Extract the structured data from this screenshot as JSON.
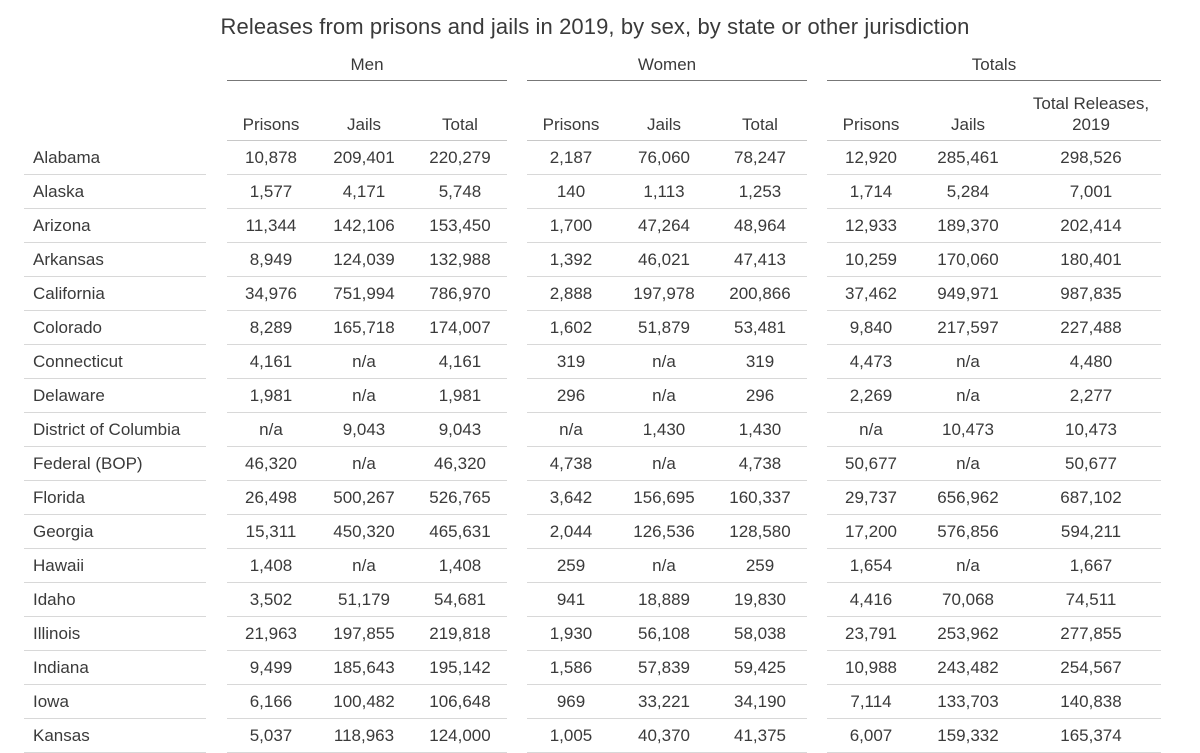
{
  "title": "Releases from prisons and jails in 2019, by sex, by state or other jurisdiction",
  "groups": {
    "men": "Men",
    "women": "Women",
    "totals": "Totals"
  },
  "columns": {
    "prisons": "Prisons",
    "jails": "Jails",
    "total": "Total",
    "total_releases": "Total Releases, 2019"
  },
  "rows": [
    {
      "state": "Alabama",
      "m_prisons": "10,878",
      "m_jails": "209,401",
      "m_total": "220,279",
      "w_prisons": "2,187",
      "w_jails": "76,060",
      "w_total": "78,247",
      "t_prisons": "12,920",
      "t_jails": "285,461",
      "t_total": "298,526"
    },
    {
      "state": "Alaska",
      "m_prisons": "1,577",
      "m_jails": "4,171",
      "m_total": "5,748",
      "w_prisons": "140",
      "w_jails": "1,113",
      "w_total": "1,253",
      "t_prisons": "1,714",
      "t_jails": "5,284",
      "t_total": "7,001"
    },
    {
      "state": "Arizona",
      "m_prisons": "11,344",
      "m_jails": "142,106",
      "m_total": "153,450",
      "w_prisons": "1,700",
      "w_jails": "47,264",
      "w_total": "48,964",
      "t_prisons": "12,933",
      "t_jails": "189,370",
      "t_total": "202,414"
    },
    {
      "state": "Arkansas",
      "m_prisons": "8,949",
      "m_jails": "124,039",
      "m_total": "132,988",
      "w_prisons": "1,392",
      "w_jails": "46,021",
      "w_total": "47,413",
      "t_prisons": "10,259",
      "t_jails": "170,060",
      "t_total": "180,401"
    },
    {
      "state": "California",
      "m_prisons": "34,976",
      "m_jails": "751,994",
      "m_total": "786,970",
      "w_prisons": "2,888",
      "w_jails": "197,978",
      "w_total": "200,866",
      "t_prisons": "37,462",
      "t_jails": "949,971",
      "t_total": "987,835"
    },
    {
      "state": "Colorado",
      "m_prisons": "8,289",
      "m_jails": "165,718",
      "m_total": "174,007",
      "w_prisons": "1,602",
      "w_jails": "51,879",
      "w_total": "53,481",
      "t_prisons": "9,840",
      "t_jails": "217,597",
      "t_total": "227,488"
    },
    {
      "state": "Connecticut",
      "m_prisons": "4,161",
      "m_jails": "n/a",
      "m_total": "4,161",
      "w_prisons": "319",
      "w_jails": "n/a",
      "w_total": "319",
      "t_prisons": "4,473",
      "t_jails": "n/a",
      "t_total": "4,480"
    },
    {
      "state": "Delaware",
      "m_prisons": "1,981",
      "m_jails": "n/a",
      "m_total": "1,981",
      "w_prisons": "296",
      "w_jails": "n/a",
      "w_total": "296",
      "t_prisons": "2,269",
      "t_jails": "n/a",
      "t_total": "2,277"
    },
    {
      "state": "District of Columbia",
      "m_prisons": "n/a",
      "m_jails": "9,043",
      "m_total": "9,043",
      "w_prisons": "n/a",
      "w_jails": "1,430",
      "w_total": "1,430",
      "t_prisons": "n/a",
      "t_jails": "10,473",
      "t_total": "10,473"
    },
    {
      "state": "Federal (BOP)",
      "m_prisons": "46,320",
      "m_jails": "n/a",
      "m_total": "46,320",
      "w_prisons": "4,738",
      "w_jails": "n/a",
      "w_total": "4,738",
      "t_prisons": "50,677",
      "t_jails": "n/a",
      "t_total": "50,677"
    },
    {
      "state": "Florida",
      "m_prisons": "26,498",
      "m_jails": "500,267",
      "m_total": "526,765",
      "w_prisons": "3,642",
      "w_jails": "156,695",
      "w_total": "160,337",
      "t_prisons": "29,737",
      "t_jails": "656,962",
      "t_total": "687,102"
    },
    {
      "state": "Georgia",
      "m_prisons": "15,311",
      "m_jails": "450,320",
      "m_total": "465,631",
      "w_prisons": "2,044",
      "w_jails": "126,536",
      "w_total": "128,580",
      "t_prisons": "17,200",
      "t_jails": "576,856",
      "t_total": "594,211"
    },
    {
      "state": "Hawaii",
      "m_prisons": "1,408",
      "m_jails": "n/a",
      "m_total": "1,408",
      "w_prisons": "259",
      "w_jails": "n/a",
      "w_total": "259",
      "t_prisons": "1,654",
      "t_jails": "n/a",
      "t_total": "1,667"
    },
    {
      "state": "Idaho",
      "m_prisons": "3,502",
      "m_jails": "51,179",
      "m_total": "54,681",
      "w_prisons": "941",
      "w_jails": "18,889",
      "w_total": "19,830",
      "t_prisons": "4,416",
      "t_jails": "70,068",
      "t_total": "74,511"
    },
    {
      "state": "Illinois",
      "m_prisons": "21,963",
      "m_jails": "197,855",
      "m_total": "219,818",
      "w_prisons": "1,930",
      "w_jails": "56,108",
      "w_total": "58,038",
      "t_prisons": "23,791",
      "t_jails": "253,962",
      "t_total": "277,855"
    },
    {
      "state": "Indiana",
      "m_prisons": "9,499",
      "m_jails": "185,643",
      "m_total": "195,142",
      "w_prisons": "1,586",
      "w_jails": "57,839",
      "w_total": "59,425",
      "t_prisons": "10,988",
      "t_jails": "243,482",
      "t_total": "254,567"
    },
    {
      "state": "Iowa",
      "m_prisons": "6,166",
      "m_jails": "100,482",
      "m_total": "106,648",
      "w_prisons": "969",
      "w_jails": "33,221",
      "w_total": "34,190",
      "t_prisons": "7,114",
      "t_jails": "133,703",
      "t_total": "140,838"
    },
    {
      "state": "Kansas",
      "m_prisons": "5,037",
      "m_jails": "118,963",
      "m_total": "124,000",
      "w_prisons": "1,005",
      "w_jails": "40,370",
      "w_total": "41,375",
      "t_prisons": "6,007",
      "t_jails": "159,332",
      "t_total": "165,374"
    }
  ]
}
